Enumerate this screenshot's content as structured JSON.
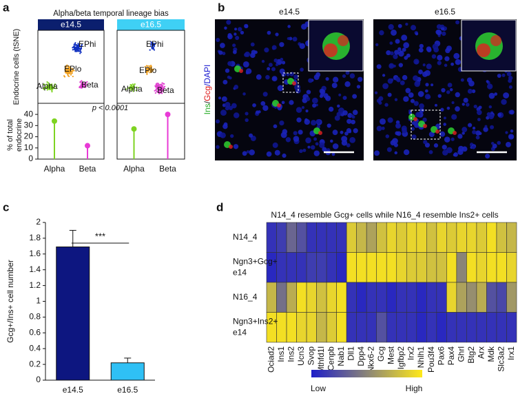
{
  "panel_labels": [
    "a",
    "b",
    "c",
    "d"
  ],
  "micrographs": {
    "titles": [
      "e14.5",
      "e16.5"
    ],
    "stain_parts": [
      {
        "text": "Ins",
        "color": "#22aa22"
      },
      {
        "text": "/",
        "color": "#222222"
      },
      {
        "text": "Gcg",
        "color": "#dd1111"
      },
      {
        "text": "/DAPI",
        "color": "#1a1ad0"
      }
    ]
  },
  "chart_data": [
    {
      "type": "lollipop",
      "title": "Alpha/beta temporal lineage bias",
      "embedding_label": "Endocrine cells (tSNE)",
      "cluster_labels": [
        "EPhi",
        "EPlo",
        "Alpha",
        "Beta"
      ],
      "y_label": [
        "% of total",
        "endocrine"
      ],
      "annotation": "p < 0.0001",
      "categories": [
        "Alpha",
        "Beta"
      ],
      "colors": [
        "#7ed321",
        "#e83ad6"
      ],
      "series": [
        {
          "name": "e14.5",
          "color": "#0b1f6e",
          "values": [
            34,
            12
          ]
        },
        {
          "name": "e16.5",
          "color": "#3fd0f5",
          "values": [
            27,
            40
          ]
        }
      ],
      "ylim": [
        0,
        45
      ],
      "yticks": [
        0,
        10,
        20,
        30,
        40
      ]
    },
    {
      "type": "bar",
      "categories": [
        "e14.5",
        "e16.5"
      ],
      "values": [
        1.69,
        0.22
      ],
      "errors": [
        0.21,
        0.06
      ],
      "colors": [
        "#0d1680",
        "#2fc0f5"
      ],
      "ylim": [
        0,
        2
      ],
      "yticks": [
        0,
        0.2,
        0.4,
        0.6,
        0.8,
        1,
        1.2,
        1.4,
        1.6,
        1.8,
        2
      ],
      "y_label": "Gcg+/Ins+ cell number",
      "annotation": "***"
    },
    {
      "type": "heatmap",
      "title": "N14_4 resemble Gcg+ cells while N16_4 resemble Ins2+ cells",
      "rows": [
        [
          "N14_4"
        ],
        [
          "Ngn3+Gcg+",
          "e14"
        ],
        [
          "N16_4"
        ],
        [
          "Ngn3+Ins2+",
          "e14"
        ]
      ],
      "columns": [
        "Ociad2",
        "Ins1",
        "Ins2",
        "Ucn3",
        "Svop",
        "Mthfd1l",
        "Cenpb",
        "Nab1",
        "Dll1",
        "Dpp4",
        "Nkx6-2",
        "Gcg",
        "Mest",
        "Igfbp2",
        "Irx2",
        "Nhlh1",
        "Pou3f4",
        "Pax6",
        "Pax4",
        "Ghrl",
        "Btg2",
        "Arx",
        "Mdk",
        "Slc3a2",
        "Irx1"
      ],
      "values": [
        [
          0.1,
          0.15,
          0.35,
          0.25,
          0.1,
          0.1,
          0.1,
          0.1,
          0.85,
          0.75,
          0.65,
          0.8,
          0.9,
          0.85,
          0.9,
          0.9,
          0.8,
          0.9,
          0.85,
          0.9,
          0.9,
          0.85,
          0.95,
          0.8,
          0.75
        ],
        [
          0.05,
          0.1,
          0.1,
          0.1,
          0.15,
          0.15,
          0.1,
          0.05,
          0.95,
          0.95,
          0.95,
          0.95,
          0.95,
          0.9,
          0.85,
          0.85,
          0.8,
          0.8,
          0.95,
          0.5,
          0.95,
          0.9,
          0.95,
          0.95,
          0.9
        ],
        [
          0.75,
          0.4,
          0.7,
          0.95,
          0.9,
          0.8,
          0.9,
          0.95,
          0.1,
          0.05,
          0.1,
          0.1,
          0.05,
          0.1,
          0.1,
          0.05,
          0.1,
          0.1,
          0.9,
          0.65,
          0.55,
          0.7,
          0.25,
          0.2,
          0.6
        ],
        [
          0.95,
          0.95,
          0.95,
          0.9,
          0.9,
          0.75,
          0.85,
          0.95,
          0.1,
          0.1,
          0.1,
          0.25,
          0.1,
          0.1,
          0.1,
          0.05,
          0.1,
          0.05,
          0.1,
          0.1,
          0.1,
          0.1,
          0.1,
          0.1,
          0.1
        ]
      ],
      "colormap": [
        "#1e1ec8",
        "#8a8478",
        "#ffe91a"
      ],
      "clim": [
        0,
        1
      ],
      "legend_labels": [
        "Low",
        "High"
      ]
    }
  ]
}
